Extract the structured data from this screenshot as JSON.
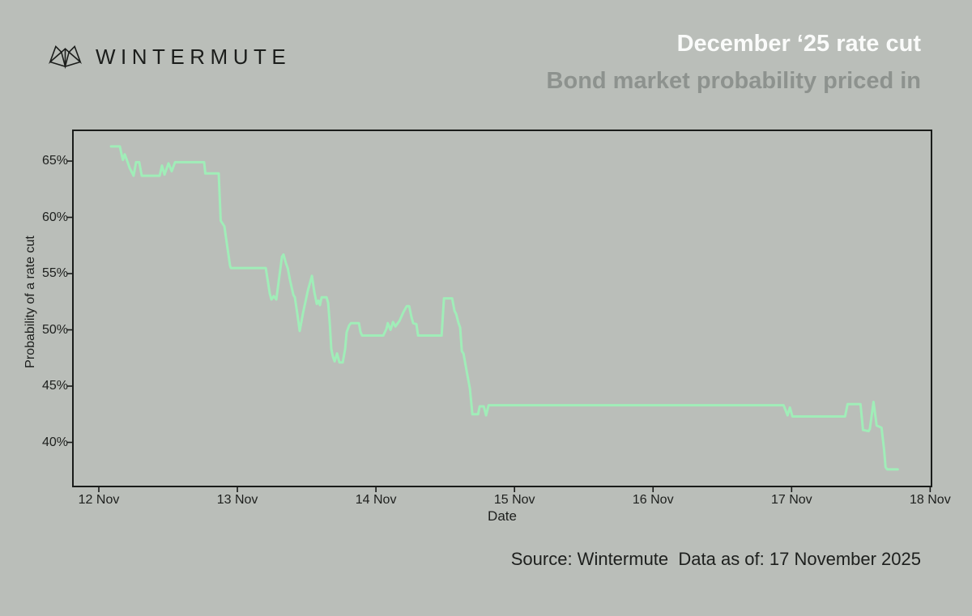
{
  "brand": {
    "name": "WINTERMUTE",
    "logo_icon": "wintermute-fox-icon"
  },
  "header": {
    "title": "December ‘25 rate cut",
    "subtitle": "Bond market probability priced in"
  },
  "footer": {
    "source_text": "Source: Wintermute  Data as of: 17 November 2025"
  },
  "colors": {
    "background": "#babeb9",
    "line": "#a0edb8",
    "plot_border": "#1a1c1a",
    "title": "#fafbfa",
    "subtitle": "#8d928e",
    "text": "#1d1f1d",
    "brand": "#1b1d1b"
  },
  "chart_data": {
    "type": "line",
    "title": "December ‘25 rate cut — Bond market probability priced in",
    "xlabel": "Date",
    "ylabel": "Probability of a rate cut",
    "x_ticks": [
      "12 Nov",
      "13 Nov",
      "14 Nov",
      "15 Nov",
      "16 Nov",
      "17 Nov",
      "18 Nov"
    ],
    "x_tick_days": [
      0,
      1,
      2,
      3,
      4,
      5,
      6
    ],
    "y_ticks": [
      "65%",
      "60%",
      "55%",
      "50%",
      "45%",
      "40%"
    ],
    "y_tick_values": [
      65,
      60,
      55,
      50,
      45,
      40
    ],
    "x_range_days": [
      -0.19,
      6.02
    ],
    "y_range": [
      36.1,
      67.7
    ],
    "grid": false,
    "legend": "none",
    "series": [
      {
        "name": "Probability of a rate cut",
        "units": "percent",
        "x_units": "days since 12 Nov 2025",
        "points": [
          [
            0.088,
            66.3
          ],
          [
            0.152,
            66.3
          ],
          [
            0.164,
            65.6
          ],
          [
            0.174,
            65.1
          ],
          [
            0.187,
            65.6
          ],
          [
            0.205,
            65.0
          ],
          [
            0.222,
            64.4
          ],
          [
            0.251,
            63.7
          ],
          [
            0.269,
            64.9
          ],
          [
            0.292,
            64.9
          ],
          [
            0.31,
            63.7
          ],
          [
            0.439,
            63.7
          ],
          [
            0.456,
            64.6
          ],
          [
            0.474,
            63.8
          ],
          [
            0.503,
            64.8
          ],
          [
            0.526,
            64.1
          ],
          [
            0.55,
            64.9
          ],
          [
            0.76,
            64.9
          ],
          [
            0.769,
            63.9
          ],
          [
            0.865,
            63.9
          ],
          [
            0.88,
            59.7
          ],
          [
            0.906,
            59.2
          ],
          [
            0.947,
            55.7
          ],
          [
            0.953,
            55.5
          ],
          [
            1.205,
            55.5
          ],
          [
            1.234,
            53.2
          ],
          [
            1.246,
            52.7
          ],
          [
            1.263,
            53.0
          ],
          [
            1.281,
            52.7
          ],
          [
            1.322,
            56.5
          ],
          [
            1.333,
            56.7
          ],
          [
            1.351,
            55.9
          ],
          [
            1.363,
            55.5
          ],
          [
            1.38,
            54.4
          ],
          [
            1.404,
            53.1
          ],
          [
            1.415,
            52.9
          ],
          [
            1.433,
            51.4
          ],
          [
            1.45,
            49.9
          ],
          [
            1.474,
            51.5
          ],
          [
            1.509,
            53.5
          ],
          [
            1.538,
            54.8
          ],
          [
            1.556,
            53.3
          ],
          [
            1.573,
            52.3
          ],
          [
            1.585,
            52.6
          ],
          [
            1.596,
            52.2
          ],
          [
            1.608,
            52.9
          ],
          [
            1.643,
            52.9
          ],
          [
            1.655,
            52.4
          ],
          [
            1.667,
            50.5
          ],
          [
            1.678,
            48.3
          ],
          [
            1.69,
            47.6
          ],
          [
            1.702,
            47.2
          ],
          [
            1.719,
            47.9
          ],
          [
            1.737,
            47.1
          ],
          [
            1.76,
            47.1
          ],
          [
            1.778,
            48.3
          ],
          [
            1.789,
            49.8
          ],
          [
            1.807,
            50.4
          ],
          [
            1.82,
            50.6
          ],
          [
            1.877,
            50.6
          ],
          [
            1.889,
            49.8
          ],
          [
            1.9,
            49.5
          ],
          [
            2.053,
            49.5
          ],
          [
            2.076,
            50.1
          ],
          [
            2.085,
            50.6
          ],
          [
            2.105,
            50.0
          ],
          [
            2.123,
            50.7
          ],
          [
            2.14,
            50.3
          ],
          [
            2.17,
            50.8
          ],
          [
            2.199,
            51.6
          ],
          [
            2.222,
            52.1
          ],
          [
            2.24,
            52.1
          ],
          [
            2.257,
            51.1
          ],
          [
            2.269,
            50.6
          ],
          [
            2.292,
            50.5
          ],
          [
            2.304,
            49.5
          ],
          [
            2.474,
            49.5
          ],
          [
            2.491,
            52.8
          ],
          [
            2.55,
            52.8
          ],
          [
            2.567,
            51.7
          ],
          [
            2.579,
            51.4
          ],
          [
            2.596,
            50.6
          ],
          [
            2.608,
            50.2
          ],
          [
            2.62,
            48.1
          ],
          [
            2.632,
            47.9
          ],
          [
            2.655,
            46.3
          ],
          [
            2.678,
            44.8
          ],
          [
            2.696,
            42.5
          ],
          [
            2.737,
            42.5
          ],
          [
            2.749,
            43.2
          ],
          [
            2.778,
            43.2
          ],
          [
            2.795,
            42.4
          ],
          [
            2.813,
            43.3
          ],
          [
            4.942,
            43.3
          ],
          [
            4.971,
            42.4
          ],
          [
            4.988,
            43.1
          ],
          [
            5.006,
            42.3
          ],
          [
            5.386,
            42.3
          ],
          [
            5.404,
            43.4
          ],
          [
            5.497,
            43.4
          ],
          [
            5.509,
            41.9
          ],
          [
            5.515,
            41.1
          ],
          [
            5.556,
            41.0
          ],
          [
            5.565,
            41.2
          ],
          [
            5.591,
            43.6
          ],
          [
            5.614,
            41.5
          ],
          [
            5.649,
            41.3
          ],
          [
            5.667,
            39.4
          ],
          [
            5.678,
            37.8
          ],
          [
            5.69,
            37.6
          ],
          [
            5.766,
            37.6
          ]
        ]
      }
    ]
  }
}
